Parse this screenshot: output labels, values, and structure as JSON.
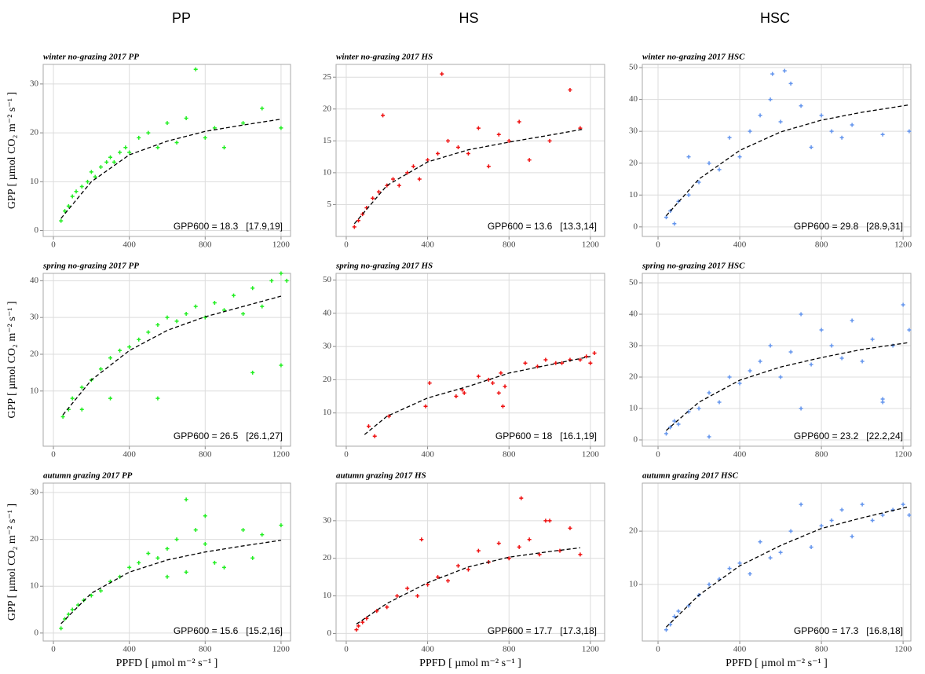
{
  "column_headers": [
    "PP",
    "HS",
    "HSC"
  ],
  "chart_data": [
    {
      "type": "scatter",
      "title": "winter no-grazing 2017 PP",
      "y_label": "GPP [ µmol CO₂ m⁻² s⁻¹ ]",
      "annotation": "GPP600 = 18.3   [17.9,19]",
      "xlim": [
        -54,
        1250
      ],
      "ylim": [
        -1.2,
        34
      ],
      "xticks": [
        0,
        400,
        800,
        1200
      ],
      "yticks": [
        0,
        10,
        20,
        30
      ],
      "grid": true,
      "series": [
        {
          "color": "#22ee22",
          "x": [
            40,
            60,
            80,
            100,
            120,
            150,
            180,
            200,
            220,
            250,
            280,
            300,
            320,
            350,
            380,
            400,
            450,
            500,
            550,
            600,
            650,
            700,
            750,
            800,
            850,
            900,
            1000,
            1100,
            1200
          ],
          "values": [
            2,
            4,
            5,
            7,
            8,
            9,
            10,
            12,
            11,
            13,
            14,
            15,
            14,
            16,
            17,
            16,
            19,
            20,
            17,
            22,
            18,
            23,
            33,
            19,
            21,
            17,
            22,
            25,
            21
          ]
        },
        {
          "color": "#000000",
          "style": "dashed",
          "x": [
            40,
            200,
            400,
            600,
            800,
            1000,
            1200
          ],
          "values": [
            2.5,
            10,
            15.5,
            18.3,
            20.3,
            21.6,
            22.8
          ]
        }
      ]
    },
    {
      "type": "scatter",
      "title": "winter no-grazing 2017 HS",
      "annotation": "GPP600 = 13.6   [13.3,14]",
      "xlim": [
        -50,
        1270
      ],
      "ylim": [
        0,
        27
      ],
      "xticks": [
        0,
        400,
        800,
        1200
      ],
      "yticks": [
        5,
        10,
        15,
        20,
        25
      ],
      "grid": true,
      "series": [
        {
          "color": "#ee1111",
          "x": [
            40,
            60,
            80,
            100,
            130,
            160,
            200,
            230,
            260,
            300,
            330,
            360,
            400,
            450,
            500,
            550,
            600,
            650,
            700,
            750,
            800,
            850,
            900,
            1000,
            1100,
            1150,
            470,
            180
          ],
          "values": [
            1.5,
            2.5,
            3.5,
            4.5,
            6,
            7,
            8,
            9,
            8,
            10,
            11,
            9,
            12,
            13,
            15,
            14,
            13,
            17,
            11,
            16,
            15,
            18,
            12,
            15,
            23,
            17,
            25.5,
            19
          ]
        },
        {
          "color": "#000000",
          "style": "dashed",
          "x": [
            40,
            200,
            400,
            600,
            800,
            1000,
            1160
          ],
          "values": [
            2,
            8,
            11.7,
            13.6,
            14.8,
            15.9,
            16.8
          ]
        }
      ]
    },
    {
      "type": "scatter",
      "title": "winter no-grazing 2017 HSC",
      "annotation": "GPP600 = 29.8   [28.9,31]",
      "xlim": [
        -77,
        1238
      ],
      "ylim": [
        -3,
        51
      ],
      "xticks": [
        0,
        400,
        800,
        1200
      ],
      "yticks": [
        0,
        10,
        20,
        30,
        40,
        50
      ],
      "grid": true,
      "series": [
        {
          "color": "#6495ed",
          "x": [
            40,
            60,
            80,
            100,
            150,
            200,
            250,
            300,
            350,
            400,
            450,
            500,
            550,
            600,
            650,
            700,
            750,
            800,
            850,
            900,
            950,
            1100,
            1230,
            560,
            620,
            150
          ],
          "values": [
            3,
            5,
            1,
            8,
            10,
            14,
            20,
            18,
            28,
            22,
            30,
            35,
            40,
            33,
            45,
            38,
            25,
            35,
            30,
            28,
            32,
            29,
            30,
            48,
            49,
            22
          ]
        },
        {
          "color": "#000000",
          "style": "dashed",
          "x": [
            40,
            200,
            400,
            600,
            800,
            1000,
            1230
          ],
          "values": [
            3.5,
            15,
            24,
            29.8,
            33.5,
            36,
            38.3
          ]
        }
      ]
    },
    {
      "type": "scatter",
      "title": "spring no-grazing 2017 PP",
      "y_label": "GPP [ µmol CO₂ m⁻² s⁻¹ ]",
      "annotation": "GPP600 = 26.5   [26.1,27]",
      "xlim": [
        -54,
        1250
      ],
      "ylim": [
        -5,
        42
      ],
      "xticks": [
        0,
        400,
        800,
        1200
      ],
      "yticks": [
        10,
        20,
        30,
        40
      ],
      "grid": true,
      "series": [
        {
          "color": "#22ee22",
          "x": [
            50,
            80,
            100,
            150,
            200,
            250,
            300,
            350,
            400,
            450,
            500,
            550,
            600,
            650,
            700,
            750,
            800,
            850,
            900,
            950,
            1000,
            1050,
            1100,
            1150,
            1200,
            1230,
            150,
            300,
            550,
            1050,
            1200
          ],
          "values": [
            3,
            5,
            8,
            11,
            13,
            16,
            19,
            21,
            22,
            24,
            26,
            28,
            30,
            29,
            31,
            33,
            30,
            34,
            32,
            36,
            31,
            38,
            33,
            40,
            42,
            40,
            5,
            8,
            8,
            15,
            17
          ]
        },
        {
          "color": "#000000",
          "style": "dashed",
          "x": [
            50,
            200,
            400,
            600,
            800,
            1000,
            1200
          ],
          "values": [
            3.5,
            13,
            21,
            26.5,
            30.2,
            33,
            35.8
          ]
        }
      ]
    },
    {
      "type": "scatter",
      "title": "spring no-grazing 2017 HS",
      "annotation": "GPP600 = 18   [16.1,19]",
      "xlim": [
        -50,
        1270
      ],
      "ylim": [
        0,
        52
      ],
      "xticks": [
        0,
        400,
        800,
        1200
      ],
      "yticks": [
        10,
        20,
        30,
        40,
        50
      ],
      "grid": true,
      "series": [
        {
          "color": "#ee1111",
          "x": [
            110,
            140,
            210,
            390,
            410,
            540,
            570,
            580,
            650,
            700,
            720,
            750,
            760,
            770,
            780,
            880,
            940,
            980,
            1030,
            1060,
            1100,
            1150,
            1180,
            1200,
            1220
          ],
          "values": [
            6,
            3,
            9,
            12,
            19,
            15,
            17,
            16,
            21,
            20,
            19,
            16,
            22,
            12,
            18,
            25,
            24,
            26,
            25,
            25,
            26,
            26,
            27,
            25,
            28
          ]
        },
        {
          "color": "#000000",
          "style": "dashed",
          "x": [
            90,
            200,
            400,
            600,
            800,
            1000,
            1200
          ],
          "values": [
            3.5,
            9,
            14.5,
            18,
            22,
            24.5,
            27
          ]
        }
      ]
    },
    {
      "type": "scatter",
      "title": "spring no-grazing 2017 HSC",
      "annotation": "GPP600 = 23.2   [22.2,24]",
      "xlim": [
        -77,
        1238
      ],
      "ylim": [
        -2,
        53
      ],
      "xticks": [
        0,
        400,
        800,
        1200
      ],
      "yticks": [
        0,
        10,
        20,
        30,
        40,
        50
      ],
      "grid": true,
      "series": [
        {
          "color": "#6495ed",
          "x": [
            40,
            60,
            80,
            100,
            150,
            200,
            250,
            300,
            350,
            400,
            450,
            500,
            550,
            600,
            650,
            700,
            750,
            800,
            850,
            900,
            950,
            1000,
            1050,
            1100,
            1150,
            1200,
            1230,
            700,
            1100,
            250
          ],
          "values": [
            2,
            4,
            6,
            5,
            9,
            10,
            15,
            12,
            20,
            18,
            22,
            25,
            30,
            20,
            28,
            40,
            24,
            35,
            30,
            26,
            38,
            25,
            32,
            12,
            30,
            43,
            35,
            10,
            13,
            1
          ]
        },
        {
          "color": "#000000",
          "style": "dashed",
          "x": [
            40,
            200,
            400,
            600,
            800,
            1000,
            1230
          ],
          "values": [
            3,
            12,
            19,
            23.2,
            26.2,
            28.8,
            31
          ]
        }
      ]
    },
    {
      "type": "scatter",
      "title": "autumn grazing 2017 PP",
      "y_label": "GPP [ µmol CO₂ m⁻² s⁻¹ ]",
      "x_label": "PPFD [ µmol m⁻² s⁻¹ ]",
      "annotation": "GPP600 = 15.6   [15.2,16]",
      "xlim": [
        -54,
        1250
      ],
      "ylim": [
        -1.7,
        32
      ],
      "xticks": [
        0,
        400,
        800,
        1200
      ],
      "yticks": [
        0,
        10,
        20,
        30
      ],
      "grid": true,
      "series": [
        {
          "color": "#22ee22",
          "x": [
            40,
            60,
            80,
            100,
            130,
            160,
            200,
            250,
            300,
            350,
            400,
            450,
            500,
            550,
            600,
            650,
            700,
            750,
            800,
            850,
            900,
            1000,
            1050,
            1100,
            1200,
            700,
            600,
            800
          ],
          "values": [
            1,
            3,
            4,
            5,
            6,
            7,
            8,
            9,
            11,
            12,
            14,
            15,
            17,
            16,
            18,
            20,
            28.5,
            22,
            19,
            15,
            14,
            22,
            16,
            21,
            23,
            13,
            12,
            25
          ]
        },
        {
          "color": "#000000",
          "style": "dashed",
          "x": [
            40,
            200,
            400,
            600,
            800,
            1000,
            1200
          ],
          "values": [
            2,
            8.5,
            13,
            15.6,
            17.3,
            18.6,
            19.8
          ]
        }
      ]
    },
    {
      "type": "scatter",
      "title": "autumn grazing 2017 HS",
      "x_label": "PPFD [ µmol m⁻² s⁻¹ ]",
      "annotation": "GPP600 = 17.7   [17.3,18]",
      "xlim": [
        -50,
        1270
      ],
      "ylim": [
        -2,
        40
      ],
      "xticks": [
        0,
        400,
        800,
        1200
      ],
      "yticks": [
        0,
        10,
        20,
        30
      ],
      "grid": true,
      "series": [
        {
          "color": "#ee1111",
          "x": [
            50,
            60,
            80,
            100,
            150,
            200,
            250,
            300,
            350,
            400,
            450,
            500,
            550,
            600,
            650,
            700,
            750,
            800,
            850,
            900,
            950,
            1000,
            1050,
            1100,
            1150,
            370,
            860,
            980
          ],
          "values": [
            1,
            2,
            3,
            4,
            6,
            7,
            10,
            12,
            10,
            13,
            15,
            14,
            18,
            17,
            22,
            19,
            24,
            20,
            23,
            25,
            21,
            30,
            22,
            28,
            21,
            25,
            36,
            30
          ]
        },
        {
          "color": "#000000",
          "style": "dashed",
          "x": [
            50,
            200,
            400,
            600,
            800,
            1000,
            1150
          ],
          "values": [
            2.5,
            8,
            13.5,
            17.7,
            20.3,
            21.8,
            22.8
          ]
        }
      ]
    },
    {
      "type": "scatter",
      "title": "autumn grazing 2017 HSC",
      "x_label": "PPFD [ µmol m⁻² s⁻¹ ]",
      "annotation": "GPP600 = 17.3   [16.8,18]",
      "xlim": [
        -77,
        1238
      ],
      "ylim": [
        -0.6,
        29
      ],
      "xticks": [
        0,
        400,
        800,
        1200
      ],
      "yticks": [
        10,
        20
      ],
      "grid": true,
      "series": [
        {
          "color": "#6495ed",
          "x": [
            40,
            60,
            80,
            100,
            150,
            200,
            250,
            300,
            350,
            400,
            450,
            500,
            550,
            600,
            650,
            700,
            750,
            800,
            850,
            900,
            950,
            1000,
            1050,
            1100,
            1150,
            1200,
            1230
          ],
          "values": [
            1.5,
            2.5,
            4,
            5,
            6,
            8,
            10,
            11,
            13,
            14,
            12,
            18,
            15,
            16,
            20,
            25,
            17,
            21,
            22,
            24,
            19,
            25,
            22,
            23,
            24,
            25,
            23
          ]
        },
        {
          "color": "#000000",
          "style": "dashed",
          "x": [
            40,
            200,
            400,
            600,
            800,
            1000,
            1220
          ],
          "values": [
            2,
            8,
            13.5,
            17.3,
            20.5,
            22.5,
            24.5
          ]
        }
      ]
    }
  ]
}
